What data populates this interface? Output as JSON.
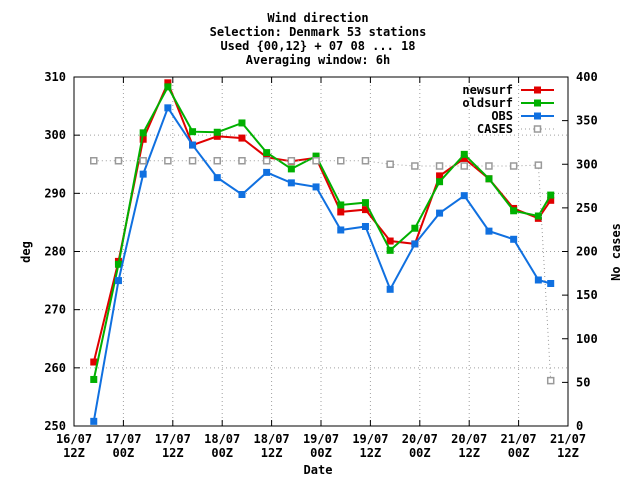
{
  "chart_data": {
    "type": "line",
    "title_lines": [
      "Wind direction",
      "Selection: Denmark     53 stations",
      "Used {00,12} + 07 08 ... 18",
      "Averaging window:  6h"
    ],
    "xlabel": "Date",
    "ylabel": "deg",
    "y2label": "No cases",
    "x_range": [
      0,
      20
    ],
    "ylim": [
      250,
      310
    ],
    "y2lim": [
      0,
      400
    ],
    "y_ticks": [
      250,
      260,
      270,
      280,
      290,
      300,
      310
    ],
    "y2_ticks": [
      0,
      50,
      100,
      150,
      200,
      250,
      300,
      350,
      400
    ],
    "x_ticks": [
      {
        "pos": 0,
        "line1": "16/07",
        "line2": "12Z"
      },
      {
        "pos": 2,
        "line1": "17/07",
        "line2": "00Z"
      },
      {
        "pos": 4,
        "line1": "17/07",
        "line2": "12Z"
      },
      {
        "pos": 6,
        "line1": "18/07",
        "line2": "00Z"
      },
      {
        "pos": 8,
        "line1": "18/07",
        "line2": "12Z"
      },
      {
        "pos": 10,
        "line1": "19/07",
        "line2": "00Z"
      },
      {
        "pos": 12,
        "line1": "19/07",
        "line2": "12Z"
      },
      {
        "pos": 14,
        "line1": "20/07",
        "line2": "00Z"
      },
      {
        "pos": 16,
        "line1": "20/07",
        "line2": "12Z"
      },
      {
        "pos": 18,
        "line1": "21/07",
        "line2": "00Z"
      },
      {
        "pos": 20,
        "line1": "21/07",
        "line2": "12Z"
      }
    ],
    "grid": true,
    "legend_position": "top-right",
    "series": [
      {
        "name": "newsurf",
        "color": "#e00000",
        "marker": "square",
        "axis": "left",
        "x": [
          0.8,
          1.8,
          2.8,
          3.8,
          4.8,
          5.8,
          6.8,
          7.8,
          8.8,
          9.8,
          10.8,
          11.8,
          12.8,
          13.8,
          14.8,
          15.8,
          16.8,
          17.8,
          18.8,
          19.3
        ],
        "values": [
          261,
          278.3,
          299.3,
          309,
          298.3,
          299.8,
          299.5,
          296.2,
          295.5,
          296.1,
          286.8,
          287.2,
          281.8,
          281.3,
          293,
          296,
          292.5,
          287.4,
          285.7,
          288.8
        ]
      },
      {
        "name": "oldsurf",
        "color": "#00b000",
        "marker": "square",
        "axis": "left",
        "x": [
          0.8,
          1.8,
          2.8,
          3.8,
          4.8,
          5.8,
          6.8,
          7.8,
          8.8,
          9.8,
          10.8,
          11.8,
          12.8,
          13.8,
          14.8,
          15.8,
          16.8,
          17.8,
          18.8,
          19.3
        ],
        "values": [
          258,
          277.8,
          300.4,
          308.3,
          300.6,
          300.5,
          302.1,
          297,
          294.2,
          296.4,
          288,
          288.4,
          280.2,
          284,
          292,
          296.7,
          292.5,
          287,
          286.1,
          289.7
        ]
      },
      {
        "name": "OBS",
        "color": "#1070e0",
        "marker": "square",
        "axis": "left",
        "x": [
          0.8,
          1.8,
          2.8,
          3.8,
          4.8,
          5.8,
          6.8,
          7.8,
          8.8,
          9.8,
          10.8,
          11.8,
          12.8,
          13.8,
          14.8,
          15.8,
          16.8,
          17.8,
          18.8,
          19.3
        ],
        "values": [
          250.8,
          275,
          293.3,
          304.7,
          298.3,
          292.7,
          289.8,
          293.6,
          291.8,
          291.1,
          283.7,
          284.3,
          273.5,
          281.3,
          286.6,
          289.6,
          283.5,
          282.1,
          275.1,
          274.5
        ]
      },
      {
        "name": "CASES",
        "color": "#9a9a9a",
        "marker": "open-square",
        "axis": "right",
        "dotted": true,
        "x": [
          0.8,
          1.8,
          2.8,
          3.8,
          4.8,
          5.8,
          6.8,
          7.8,
          8.8,
          9.8,
          10.8,
          11.8,
          12.8,
          13.8,
          14.8,
          15.8,
          16.8,
          17.8,
          18.8,
          19.3
        ],
        "values": [
          304,
          304,
          304,
          304,
          304,
          304,
          304,
          304,
          304,
          304,
          304,
          304,
          300,
          298,
          298,
          298,
          298,
          298,
          299,
          52
        ]
      }
    ]
  }
}
